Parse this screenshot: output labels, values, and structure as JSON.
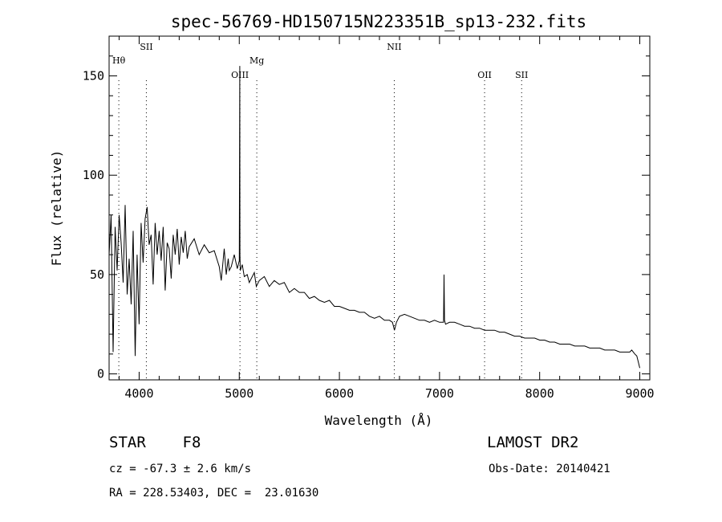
{
  "chart_data": {
    "type": "line",
    "title": "spec-56769-HD150715N223351B_sp13-232.fits",
    "xlabel": "Wavelength (Å)",
    "ylabel": "Flux (relative)",
    "xlim": [
      3700,
      9100
    ],
    "ylim": [
      -3,
      170
    ],
    "xticks": [
      4000,
      5000,
      6000,
      7000,
      8000,
      9000
    ],
    "yticks": [
      0,
      50,
      100,
      150
    ],
    "series": [
      {
        "x": [
          3700,
          3720,
          3740,
          3760,
          3780,
          3800,
          3820,
          3840,
          3860,
          3880,
          3900,
          3920,
          3940,
          3960,
          3980,
          4000,
          4020,
          4040,
          4060,
          4080,
          4100,
          4120,
          4140,
          4160,
          4180,
          4200,
          4220,
          4240,
          4260,
          4280,
          4300,
          4320,
          4340,
          4360,
          4380,
          4400,
          4420,
          4440,
          4460,
          4480,
          4500,
          4550,
          4600,
          4650,
          4700,
          4750,
          4800,
          4820,
          4850,
          4870,
          4890,
          4900,
          4920,
          4950,
          4980,
          5000,
          5005,
          5007,
          5010,
          5030,
          5050,
          5080,
          5100,
          5150,
          5170,
          5200,
          5250,
          5300,
          5350,
          5400,
          5450,
          5500,
          5550,
          5600,
          5650,
          5700,
          5750,
          5800,
          5850,
          5900,
          5950,
          6000,
          6050,
          6100,
          6150,
          6200,
          6250,
          6300,
          6350,
          6400,
          6450,
          6500,
          6530,
          6550,
          6570,
          6600,
          6650,
          6700,
          6750,
          6800,
          6850,
          6900,
          6950,
          7000,
          7020,
          7040,
          7045,
          7050,
          7060,
          7100,
          7150,
          7200,
          7250,
          7300,
          7350,
          7400,
          7450,
          7500,
          7550,
          7600,
          7650,
          7700,
          7750,
          7800,
          7850,
          7900,
          7950,
          8000,
          8050,
          8100,
          8150,
          8200,
          8250,
          8300,
          8350,
          8400,
          8450,
          8500,
          8550,
          8600,
          8650,
          8700,
          8750,
          8800,
          8850,
          8900,
          8920,
          8950,
          8970,
          8990,
          9000
        ],
        "y": [
          60,
          80,
          11,
          74,
          52,
          80,
          66,
          46,
          85,
          40,
          58,
          35,
          72,
          9,
          60,
          25,
          76,
          56,
          78,
          84,
          65,
          70,
          45,
          76,
          60,
          72,
          57,
          74,
          42,
          66,
          63,
          48,
          70,
          60,
          73,
          55,
          69,
          61,
          72,
          58,
          64,
          68,
          60,
          65,
          61,
          62,
          54,
          47,
          63,
          50,
          58,
          52,
          54,
          60,
          53,
          57,
          155,
          60,
          52,
          55,
          49,
          50,
          46,
          51,
          44,
          47,
          49,
          44,
          47,
          45,
          46,
          41,
          43,
          41,
          41,
          38,
          39,
          37,
          36,
          37,
          34,
          34,
          33,
          32,
          32,
          31,
          31,
          29,
          28,
          29,
          27,
          27,
          26,
          22,
          26,
          29,
          30,
          29,
          28,
          27,
          27,
          26,
          27,
          26,
          26,
          26,
          50,
          27,
          25,
          26,
          26,
          25,
          24,
          24,
          23,
          23,
          22,
          22,
          22,
          21,
          21,
          20,
          19,
          19,
          18,
          18,
          18,
          17,
          17,
          16,
          16,
          15,
          15,
          15,
          14,
          14,
          14,
          13,
          13,
          13,
          12,
          12,
          12,
          11,
          11,
          11,
          12,
          10,
          9,
          5,
          3
        ]
      }
    ],
    "annotations": [
      {
        "label": "Hθ",
        "x": 3797,
        "tier": 1
      },
      {
        "label": "SII",
        "x": 4072,
        "tier": 0
      },
      {
        "label": "OIII",
        "x": 5007,
        "tier": 2
      },
      {
        "label": "Mg",
        "x": 5175,
        "tier": 1
      },
      {
        "label": "NII",
        "x": 6548,
        "tier": 0
      },
      {
        "label": "OII",
        "x": 7450,
        "tier": 2
      },
      {
        "label": "SII",
        "x": 7820,
        "tier": 2
      }
    ],
    "grid": false,
    "legend": "none"
  },
  "info": {
    "class_label": "STAR    F8",
    "survey": "LAMOST DR2",
    "cz": "cz = -67.3 ± 2.6 km/s",
    "obs_date": "Obs-Date: 20140421",
    "coords": "RA = 228.53403, DEC =  23.01630"
  }
}
